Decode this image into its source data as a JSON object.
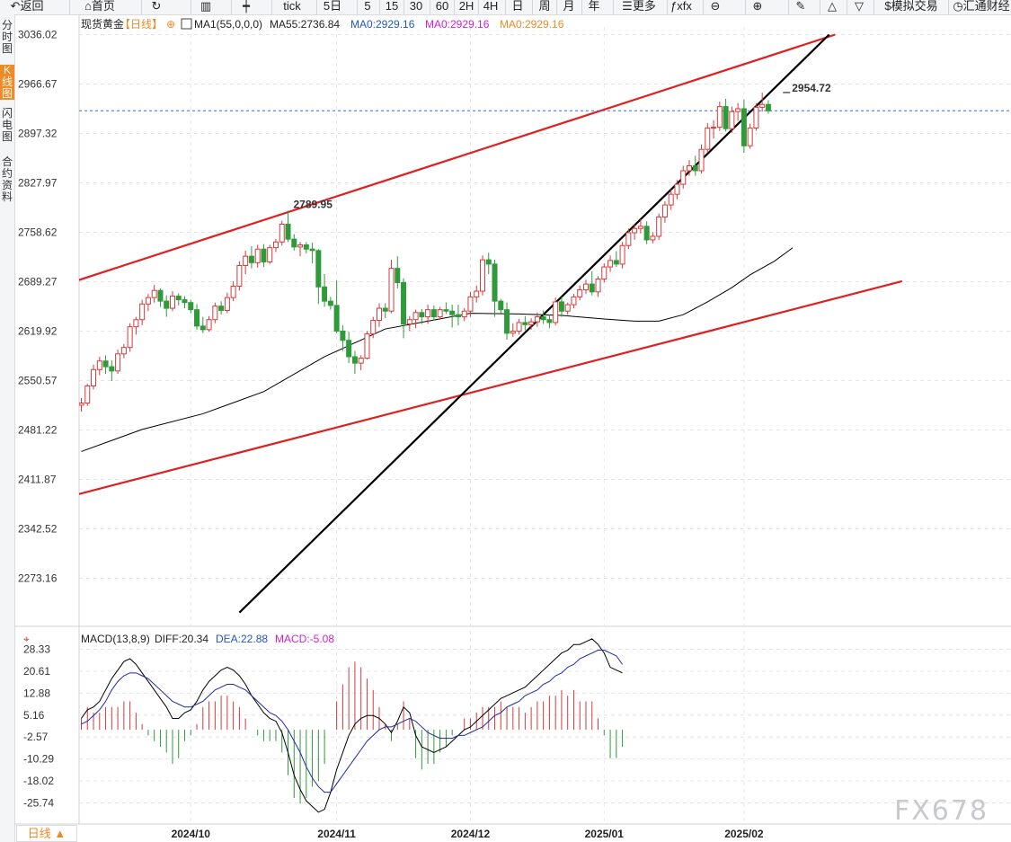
{
  "toolbar": {
    "items": [
      {
        "label": "返回",
        "icon": "back-arrow-icon"
      },
      {
        "label": "首页",
        "icon": "home-icon"
      },
      {
        "label": "",
        "icon": "refresh-icon"
      },
      {
        "label": "",
        "icon": "bar-chart-icon"
      },
      {
        "label": "",
        "icon": "candlestick-icon"
      },
      {
        "label": "tick",
        "icon": ""
      },
      {
        "label": "5日",
        "icon": ""
      },
      {
        "label": "5",
        "icon": ""
      },
      {
        "label": "15",
        "icon": ""
      },
      {
        "label": "30",
        "icon": ""
      },
      {
        "label": "60",
        "icon": ""
      },
      {
        "label": "2H",
        "icon": ""
      },
      {
        "label": "4H",
        "icon": ""
      },
      {
        "label": "日",
        "icon": ""
      },
      {
        "label": "周",
        "icon": ""
      },
      {
        "label": "月",
        "icon": ""
      },
      {
        "label": "年",
        "icon": ""
      },
      {
        "label": "更多",
        "icon": "menu-icon"
      },
      {
        "label": "fx",
        "icon": "formula-icon"
      },
      {
        "label": "",
        "icon": "zoom-out-icon"
      },
      {
        "label": "",
        "icon": "zoom-in-icon"
      },
      {
        "label": "",
        "icon": "pen-icon"
      },
      {
        "label": "",
        "icon": "triangle-up-icon"
      },
      {
        "label": "",
        "icon": "triangle-down-icon"
      },
      {
        "label": "模拟交易",
        "icon": "dollar-icon"
      },
      {
        "label": "汇通财经",
        "icon": "refresh-circle-icon"
      }
    ]
  },
  "sidebar": {
    "tabs": [
      {
        "label": "分时图",
        "active": false
      },
      {
        "label": "K线图",
        "active": true
      },
      {
        "label": "闪电图",
        "active": false
      },
      {
        "label": "合约资料",
        "active": false
      }
    ]
  },
  "legend": {
    "symbol": "现货黄金",
    "period": "【日线】",
    "ma1": "MA1(55,0,0,0)",
    "ma55": "MA55:2736.84",
    "ma0_a": "MA0:2929.16",
    "ma0_b": "MA0:2929.16",
    "ma0_c": "MA0:2929.16"
  },
  "macd_legend": {
    "name": "MACD(13,8,9)",
    "diff": "DIFF:20.34",
    "dea": "DEA:22.88",
    "macd": "MACD:-5.08"
  },
  "annotations": {
    "high_label": "2954.72",
    "peak_label": "2789.95"
  },
  "bottom": {
    "period_button": "日线 ▲",
    "watermark": "FX678"
  },
  "colors": {
    "up": "#d63a3a",
    "down": "#2e9a3a",
    "trend_red": "#e02020",
    "trend_black": "#000000",
    "ma": "#000000",
    "diff": "#000000",
    "dea": "#1f2aa0",
    "price_line": "#3a6fd8",
    "accent": "#f08a24",
    "legend_orange": "#f08a24",
    "legend_blue": "#1f57c8",
    "legend_magenta": "#d11fd1"
  },
  "chart_data": [
    {
      "type": "candlestick",
      "title": "现货黄金 【日线】",
      "y_ticks": [
        "3036.02",
        "2966.67",
        "2897.32",
        "2827.97",
        "2758.62",
        "2689.27",
        "2619.92",
        "2550.57",
        "2481.22",
        "2411.87",
        "2342.52",
        "2273.16"
      ],
      "ylim": [
        2240,
        3036.02
      ],
      "x_ticks": [
        "2024/10",
        "2024/11",
        "2024/12",
        "2025/01",
        "2025/02"
      ],
      "x_tick_index": [
        18,
        42,
        64,
        86,
        109
      ],
      "candles": [
        [
          2516,
          2526,
          2507,
          2519
        ],
        [
          2519,
          2546,
          2515,
          2543
        ],
        [
          2543,
          2573,
          2538,
          2566
        ],
        [
          2566,
          2584,
          2558,
          2578
        ],
        [
          2578,
          2586,
          2560,
          2570
        ],
        [
          2570,
          2579,
          2550,
          2564
        ],
        [
          2564,
          2594,
          2560,
          2588
        ],
        [
          2588,
          2602,
          2582,
          2597
        ],
        [
          2597,
          2631,
          2591,
          2626
        ],
        [
          2626,
          2640,
          2615,
          2636
        ],
        [
          2636,
          2664,
          2628,
          2658
        ],
        [
          2658,
          2672,
          2648,
          2667
        ],
        [
          2667,
          2685,
          2660,
          2677
        ],
        [
          2677,
          2680,
          2654,
          2662
        ],
        [
          2662,
          2670,
          2640,
          2652
        ],
        [
          2652,
          2676,
          2648,
          2669
        ],
        [
          2669,
          2673,
          2656,
          2664
        ],
        [
          2664,
          2669,
          2652,
          2660
        ],
        [
          2660,
          2664,
          2645,
          2650
        ],
        [
          2650,
          2658,
          2622,
          2627
        ],
        [
          2627,
          2640,
          2617,
          2622
        ],
        [
          2622,
          2641,
          2619,
          2636
        ],
        [
          2636,
          2660,
          2631,
          2655
        ],
        [
          2655,
          2662,
          2643,
          2649
        ],
        [
          2649,
          2674,
          2645,
          2667
        ],
        [
          2667,
          2690,
          2662,
          2683
        ],
        [
          2683,
          2718,
          2677,
          2712
        ],
        [
          2712,
          2733,
          2700,
          2725
        ],
        [
          2725,
          2739,
          2708,
          2716
        ],
        [
          2716,
          2741,
          2709,
          2735
        ],
        [
          2735,
          2742,
          2710,
          2717
        ],
        [
          2717,
          2741,
          2714,
          2737
        ],
        [
          2737,
          2749,
          2731,
          2745
        ],
        [
          2745,
          2775,
          2740,
          2770
        ],
        [
          2770,
          2789,
          2745,
          2749
        ],
        [
          2749,
          2756,
          2733,
          2738
        ],
        [
          2738,
          2745,
          2725,
          2741
        ],
        [
          2741,
          2745,
          2729,
          2735
        ],
        [
          2735,
          2744,
          2715,
          2733
        ],
        [
          2733,
          2735,
          2658,
          2682
        ],
        [
          2682,
          2700,
          2654,
          2662
        ],
        [
          2662,
          2668,
          2650,
          2656
        ],
        [
          2656,
          2691,
          2617,
          2620
        ],
        [
          2620,
          2628,
          2592,
          2607
        ],
        [
          2607,
          2619,
          2575,
          2584
        ],
        [
          2584,
          2592,
          2560,
          2575
        ],
        [
          2575,
          2586,
          2565,
          2582
        ],
        [
          2582,
          2620,
          2580,
          2616
        ],
        [
          2616,
          2640,
          2610,
          2635
        ],
        [
          2635,
          2659,
          2626,
          2652
        ],
        [
          2652,
          2659,
          2638,
          2648
        ],
        [
          2648,
          2720,
          2645,
          2708
        ],
        [
          2708,
          2725,
          2680,
          2688
        ],
        [
          2688,
          2694,
          2610,
          2630
        ],
        [
          2630,
          2641,
          2620,
          2636
        ],
        [
          2636,
          2650,
          2624,
          2646
        ],
        [
          2646,
          2651,
          2630,
          2640
        ],
        [
          2640,
          2657,
          2630,
          2650
        ],
        [
          2650,
          2656,
          2635,
          2640
        ],
        [
          2640,
          2654,
          2636,
          2650
        ],
        [
          2650,
          2660,
          2644,
          2648
        ],
        [
          2648,
          2657,
          2625,
          2643
        ],
        [
          2643,
          2657,
          2628,
          2640
        ],
        [
          2640,
          2652,
          2634,
          2648
        ],
        [
          2648,
          2675,
          2640,
          2668
        ],
        [
          2668,
          2684,
          2660,
          2676
        ],
        [
          2676,
          2726,
          2670,
          2720
        ],
        [
          2720,
          2730,
          2700,
          2714
        ],
        [
          2714,
          2720,
          2640,
          2662
        ],
        [
          2662,
          2665,
          2645,
          2650
        ],
        [
          2650,
          2660,
          2608,
          2617
        ],
        [
          2617,
          2631,
          2612,
          2620
        ],
        [
          2620,
          2637,
          2615,
          2632
        ],
        [
          2632,
          2641,
          2621,
          2629
        ],
        [
          2629,
          2638,
          2622,
          2633
        ],
        [
          2633,
          2646,
          2626,
          2640
        ],
        [
          2640,
          2649,
          2630,
          2636
        ],
        [
          2636,
          2643,
          2624,
          2632
        ],
        [
          2632,
          2667,
          2628,
          2661
        ],
        [
          2661,
          2668,
          2640,
          2648
        ],
        [
          2648,
          2660,
          2643,
          2657
        ],
        [
          2657,
          2672,
          2652,
          2668
        ],
        [
          2668,
          2684,
          2663,
          2678
        ],
        [
          2678,
          2692,
          2672,
          2686
        ],
        [
          2686,
          2704,
          2670,
          2675
        ],
        [
          2675,
          2697,
          2668,
          2693
        ],
        [
          2693,
          2715,
          2688,
          2710
        ],
        [
          2710,
          2726,
          2703,
          2719
        ],
        [
          2719,
          2732,
          2710,
          2714
        ],
        [
          2714,
          2745,
          2708,
          2740
        ],
        [
          2740,
          2764,
          2735,
          2758
        ],
        [
          2758,
          2769,
          2748,
          2764
        ],
        [
          2764,
          2777,
          2757,
          2767
        ],
        [
          2767,
          2774,
          2742,
          2748
        ],
        [
          2748,
          2759,
          2743,
          2753
        ],
        [
          2753,
          2785,
          2748,
          2780
        ],
        [
          2780,
          2802,
          2772,
          2797
        ],
        [
          2797,
          2819,
          2790,
          2812
        ],
        [
          2812,
          2832,
          2805,
          2826
        ],
        [
          2826,
          2852,
          2820,
          2845
        ],
        [
          2845,
          2860,
          2838,
          2852
        ],
        [
          2852,
          2866,
          2838,
          2845
        ],
        [
          2845,
          2882,
          2841,
          2875
        ],
        [
          2875,
          2912,
          2870,
          2905
        ],
        [
          2905,
          2916,
          2890,
          2906
        ],
        [
          2906,
          2942,
          2901,
          2935
        ],
        [
          2935,
          2946,
          2900,
          2904
        ],
        [
          2904,
          2935,
          2898,
          2928
        ],
        [
          2928,
          2940,
          2915,
          2932
        ],
        [
          2932,
          2945,
          2870,
          2880
        ],
        [
          2880,
          2911,
          2876,
          2905
        ],
        [
          2905,
          2940,
          2901,
          2934
        ],
        [
          2934,
          2954.72,
          2928,
          2938
        ],
        [
          2938,
          2944,
          2925,
          2929.16
        ]
      ],
      "ma55_line": [
        [
          0,
          2451
        ],
        [
          10,
          2482
        ],
        [
          20,
          2504
        ],
        [
          30,
          2535
        ],
        [
          40,
          2584
        ],
        [
          50,
          2623
        ],
        [
          57,
          2634
        ],
        [
          64,
          2645
        ],
        [
          72,
          2644
        ],
        [
          79,
          2642
        ],
        [
          86,
          2637
        ],
        [
          91,
          2634
        ],
        [
          95,
          2634
        ],
        [
          99,
          2643
        ],
        [
          103,
          2661
        ],
        [
          107,
          2681
        ],
        [
          110,
          2699
        ],
        [
          114,
          2718
        ],
        [
          117,
          2736.84
        ]
      ],
      "current_price": 2929.16,
      "trendlines": [
        {
          "color": "red",
          "from": [
            -1,
            2690
          ],
          "to": [
            124,
            3036
          ]
        },
        {
          "color": "red",
          "from": [
            -1,
            2390
          ],
          "to": [
            135,
            2690
          ]
        },
        {
          "color": "black",
          "from": [
            26,
            2225
          ],
          "to": [
            123,
            3036
          ]
        }
      ]
    },
    {
      "type": "macd",
      "title": "MACD(13,8,9)",
      "y_ticks": [
        "28.33",
        "20.61",
        "12.88",
        "5.16",
        "-2.57",
        "-10.29",
        "-18.02",
        "-25.74"
      ],
      "ylim": [
        -38,
        28.33
      ],
      "diff": [
        4,
        7,
        8,
        10,
        14,
        18,
        21,
        24,
        25,
        23,
        20,
        17,
        14,
        11,
        8,
        4,
        4,
        6,
        7,
        10,
        14,
        17,
        19,
        21,
        22,
        21,
        19,
        16,
        12,
        9,
        6,
        4,
        3,
        -1,
        -8,
        -16,
        -21,
        -25,
        -27,
        -29,
        -28,
        -22,
        -14,
        -8,
        -2,
        2,
        4,
        5,
        5,
        4,
        2,
        -1,
        3,
        8,
        6,
        -2,
        -6,
        -7,
        -8,
        -7,
        -6,
        -4,
        -2,
        0,
        1,
        3,
        5,
        7,
        9,
        11,
        12,
        13,
        14,
        15,
        17,
        19,
        21,
        23,
        25,
        27,
        28,
        30,
        30,
        31,
        32,
        30,
        27,
        22,
        21,
        20
      ],
      "dea": [
        2,
        3,
        5,
        7,
        10,
        14,
        17,
        19,
        20,
        20,
        19,
        18,
        16,
        14,
        12,
        10,
        9,
        8,
        8,
        9,
        10,
        12,
        14,
        15,
        16,
        16,
        15,
        14,
        12,
        10,
        8,
        6,
        5,
        3,
        0,
        -4,
        -8,
        -13,
        -17,
        -20,
        -22,
        -22,
        -19,
        -16,
        -13,
        -10,
        -7,
        -4,
        -2,
        0,
        1,
        1,
        2,
        3,
        4,
        3,
        1,
        -1,
        -2,
        -3,
        -3,
        -3,
        -2,
        -2,
        -1,
        0,
        1,
        3,
        5,
        6,
        8,
        9,
        10,
        12,
        13,
        14,
        16,
        17,
        19,
        20,
        22,
        23,
        25,
        26,
        27,
        28,
        28,
        27,
        26,
        23
      ]
    }
  ]
}
